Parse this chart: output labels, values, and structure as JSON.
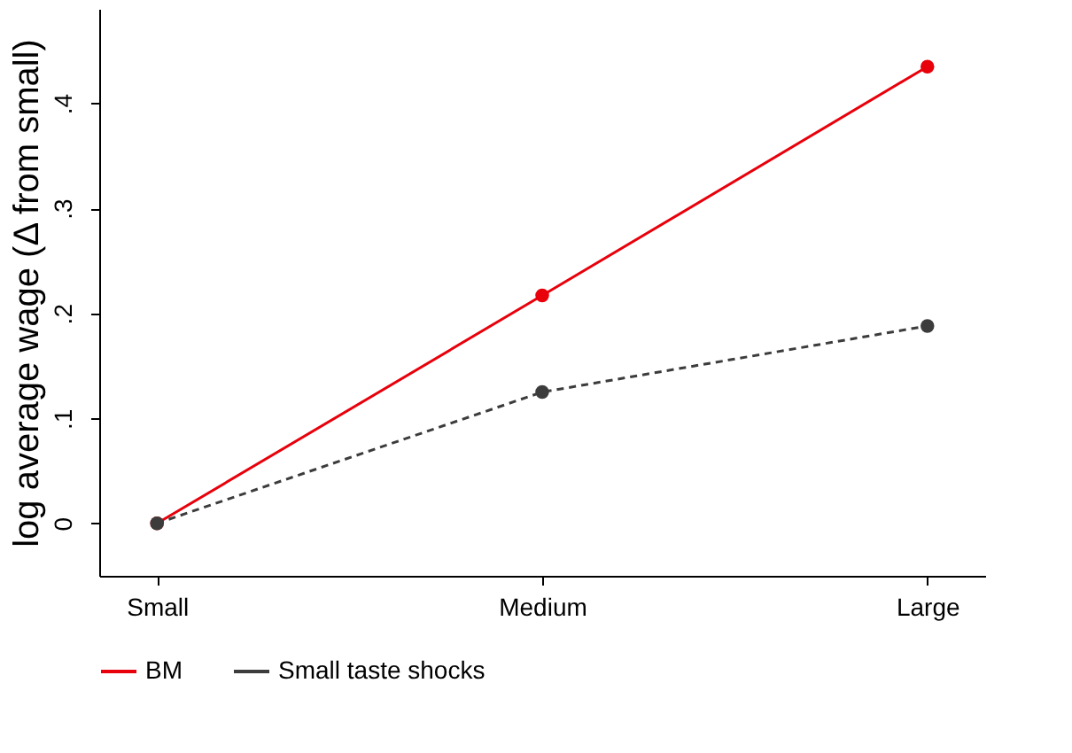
{
  "chart_data": {
    "type": "line",
    "ylabel": "log average wage (Δ from small)",
    "categories": [
      "Small",
      "Medium",
      "Large"
    ],
    "series": [
      {
        "name": "BM",
        "color": "#e8000b",
        "values": [
          0,
          0.217,
          0.435
        ],
        "line_style": "solid"
      },
      {
        "name": "Small taste shocks",
        "color": "#3c3c3c",
        "values": [
          0,
          0.125,
          0.188
        ],
        "line_style": "dashed"
      }
    ],
    "ylim": [
      -0.05,
      0.49
    ],
    "yticks": [
      0,
      {
        "value": 0.1,
        "label": ".1"
      },
      {
        "value": 0.2,
        "label": ".2"
      },
      {
        "value": 0.3,
        "label": ".3"
      },
      {
        "value": 0.4,
        "label": ".4"
      }
    ],
    "grid": false,
    "legend": "bottom",
    "marker": "circle"
  }
}
